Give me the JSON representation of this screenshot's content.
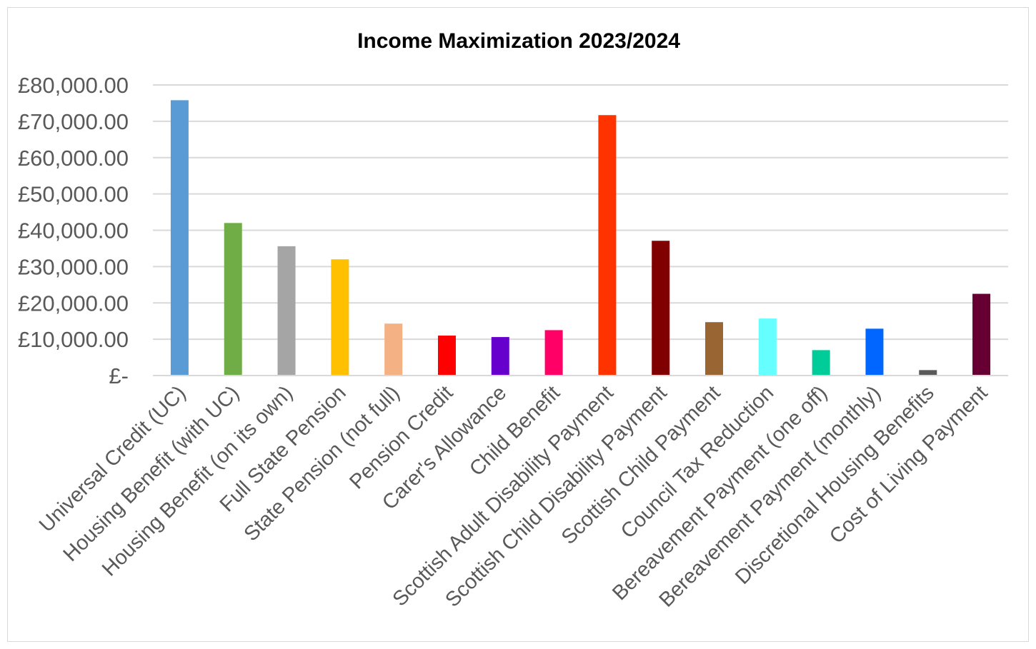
{
  "chart_data": {
    "type": "bar",
    "title": "Income Maximization 2023/2024",
    "xlabel": "",
    "ylabel": "",
    "ylim": [
      0,
      80000
    ],
    "yticks": [
      0,
      10000,
      20000,
      30000,
      40000,
      50000,
      60000,
      70000,
      80000
    ],
    "ytick_labels": [
      "£-",
      "£10,000.00",
      "£20,000.00",
      "£30,000.00",
      "£40,000.00",
      "£50,000.00",
      "£60,000.00",
      "£70,000.00",
      "£80,000.00"
    ],
    "grid": true,
    "legend": "none",
    "categories": [
      "Universal Credit (UC)",
      "Housing Benefit (with UC)",
      "Housing Benefit (on its own)",
      "Full State Pension",
      "State Pension (not full)",
      "Pension Credit",
      "Carer's Allowance",
      "Child Benefit",
      "Scottish Adult Disability Payment",
      "Scottish Child Disability Payment",
      "Scottish Child Payment",
      "Council Tax Reduction",
      "Bereavement Payment (one off)",
      "Bereavement Payment (monthly)",
      "Discretional Housing Benefits",
      "Cost of Living Payment"
    ],
    "values": [
      75800,
      42000,
      35600,
      32000,
      14300,
      11000,
      10600,
      12500,
      71700,
      37100,
      14700,
      15700,
      7000,
      12900,
      1500,
      22500
    ],
    "colors": [
      "#5b9bd5",
      "#70ad47",
      "#a5a5a5",
      "#ffc000",
      "#f4b183",
      "#ff0000",
      "#6600cc",
      "#ff0066",
      "#ff3300",
      "#800000",
      "#996633",
      "#66ffff",
      "#00cc99",
      "#0066ff",
      "#595959",
      "#660033"
    ]
  }
}
